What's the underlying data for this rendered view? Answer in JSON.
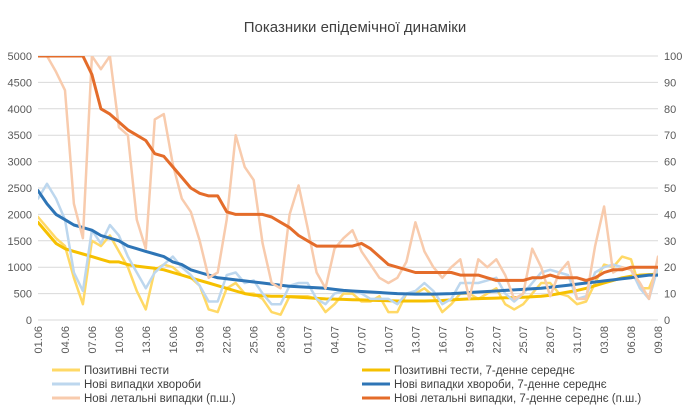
{
  "chart_data": {
    "type": "line",
    "title": "Показники епідемічної динаміки",
    "xlabel": "",
    "ylabel": "",
    "ylim": [
      0,
      5000
    ],
    "y2lim": [
      0,
      100
    ],
    "y_ticks": [
      0,
      500,
      1000,
      1500,
      2000,
      2500,
      3000,
      3500,
      4000,
      4500,
      5000
    ],
    "y2_ticks": [
      0,
      10,
      20,
      30,
      40,
      50,
      60,
      70,
      80,
      90,
      100
    ],
    "grid": true,
    "legend_position": "bottom",
    "x": [
      "01.06",
      "02.06",
      "03.06",
      "04.06",
      "05.06",
      "06.06",
      "07.06",
      "08.06",
      "09.06",
      "10.06",
      "11.06",
      "12.06",
      "13.06",
      "14.06",
      "15.06",
      "16.06",
      "17.06",
      "18.06",
      "19.06",
      "20.06",
      "21.06",
      "22.06",
      "23.06",
      "24.06",
      "25.06",
      "26.06",
      "27.06",
      "28.06",
      "29.06",
      "30.06",
      "01.07",
      "02.07",
      "03.07",
      "04.07",
      "05.07",
      "06.07",
      "07.07",
      "08.07",
      "09.07",
      "10.07",
      "11.07",
      "12.07",
      "13.07",
      "14.07",
      "15.07",
      "16.07",
      "17.07",
      "18.07",
      "19.07",
      "20.07",
      "21.07",
      "22.07",
      "23.07",
      "24.07",
      "25.07",
      "26.07",
      "27.07",
      "28.07",
      "29.07",
      "30.07",
      "31.07",
      "01.08",
      "02.08",
      "03.08",
      "04.08",
      "05.08",
      "06.08",
      "07.08",
      "08.08",
      "09.08"
    ],
    "x_tick_labels": [
      "01.06",
      "04.06",
      "07.06",
      "10.06",
      "13.06",
      "16.06",
      "19.06",
      "22.06",
      "25.06",
      "28.06",
      "01.07",
      "04.07",
      "07.07",
      "10.07",
      "13.07",
      "16.07",
      "19.07",
      "22.07",
      "25.07",
      "28.07",
      "31.07",
      "03.08",
      "06.08",
      "09.08"
    ],
    "series": [
      {
        "name": "Позитивні тести",
        "axis": "left",
        "color": "#ffd966",
        "width": 2.5,
        "values": [
          1950,
          1750,
          1550,
          1400,
          800,
          300,
          1500,
          1400,
          1600,
          1300,
          1000,
          550,
          200,
          950,
          1050,
          1000,
          850,
          800,
          650,
          200,
          150,
          600,
          700,
          500,
          500,
          400,
          150,
          100,
          450,
          450,
          450,
          400,
          150,
          300,
          500,
          500,
          350,
          350,
          450,
          150,
          150,
          500,
          500,
          600,
          450,
          150,
          300,
          500,
          500,
          400,
          500,
          600,
          300,
          200,
          300,
          500,
          700,
          700,
          500,
          450,
          300,
          350,
          700,
          1050,
          1000,
          1200,
          1150,
          600,
          600,
          1000
        ]
      },
      {
        "name": "Позитивні тести, 7-денне середнє",
        "axis": "left",
        "color": "#f6c000",
        "width": 3,
        "values": [
          1850,
          1650,
          1450,
          1350,
          1300,
          1250,
          1200,
          1150,
          1100,
          1100,
          1050,
          1020,
          1000,
          980,
          950,
          900,
          850,
          800,
          750,
          700,
          650,
          600,
          550,
          500,
          470,
          460,
          450,
          450,
          440,
          430,
          420,
          410,
          400,
          395,
          390,
          385,
          380,
          375,
          370,
          365,
          360,
          360,
          360,
          360,
          365,
          370,
          380,
          390,
          400,
          405,
          410,
          415,
          420,
          425,
          430,
          440,
          450,
          470,
          500,
          530,
          560,
          600,
          650,
          700,
          750,
          800,
          830,
          850,
          860,
          870
        ]
      },
      {
        "name": "Нові випадки хвороби",
        "axis": "left",
        "color": "#bdd7ee",
        "width": 2.5,
        "values": [
          2300,
          2580,
          2300,
          1900,
          900,
          550,
          1700,
          1450,
          1800,
          1600,
          1200,
          900,
          600,
          900,
          1050,
          1200,
          1000,
          850,
          650,
          350,
          350,
          850,
          900,
          700,
          750,
          500,
          300,
          300,
          650,
          700,
          700,
          400,
          300,
          500,
          550,
          550,
          500,
          400,
          400,
          400,
          300,
          500,
          550,
          700,
          550,
          300,
          400,
          700,
          700,
          700,
          750,
          800,
          500,
          350,
          500,
          700,
          900,
          950,
          900,
          850,
          400,
          450,
          900,
          1000,
          1050,
          1000,
          950,
          600,
          400,
          1000
        ]
      },
      {
        "name": "Нові випадки хвороби, 7-денне середнє",
        "axis": "left",
        "color": "#2e75b6",
        "width": 3,
        "values": [
          2450,
          2200,
          2000,
          1900,
          1800,
          1750,
          1700,
          1600,
          1550,
          1500,
          1400,
          1350,
          1300,
          1250,
          1200,
          1100,
          1050,
          950,
          900,
          850,
          800,
          780,
          760,
          740,
          720,
          700,
          680,
          660,
          640,
          630,
          620,
          610,
          600,
          580,
          560,
          550,
          540,
          530,
          520,
          510,
          500,
          495,
          490,
          490,
          490,
          495,
          500,
          510,
          520,
          530,
          540,
          550,
          560,
          570,
          580,
          590,
          600,
          620,
          640,
          660,
          680,
          700,
          720,
          740,
          760,
          780,
          800,
          830,
          850,
          850
        ]
      },
      {
        "name": "Нові летальні випадки (п.ш.)",
        "axis": "right",
        "color": "#f8cbad",
        "width": 2.5,
        "values": [
          100,
          100,
          94,
          87,
          44,
          31,
          100,
          95,
          100,
          73,
          70,
          38,
          27,
          76,
          78,
          59,
          46,
          41,
          30,
          16,
          18,
          38,
          70,
          58,
          53,
          29,
          14,
          12,
          40,
          51,
          35,
          18,
          12,
          27,
          31,
          34,
          26,
          21,
          16,
          14,
          16,
          22,
          37,
          26,
          20,
          16,
          20,
          23,
          8,
          23,
          20,
          23,
          17,
          8,
          10,
          27,
          20,
          9,
          18,
          22,
          8,
          8,
          28,
          43,
          18,
          20,
          19,
          14,
          8,
          24
        ]
      },
      {
        "name": "Нові летальні випадки, 7-денне середнє (п.ш.)",
        "axis": "right",
        "color": "#e46c2a",
        "width": 3,
        "values": [
          100,
          100,
          100,
          100,
          100,
          100,
          93,
          80,
          78,
          75,
          72,
          70,
          68,
          63,
          62,
          58,
          54,
          50,
          48,
          47,
          47,
          41,
          40,
          40,
          40,
          40,
          39,
          37,
          35,
          32,
          30,
          28,
          28,
          28,
          28,
          28,
          29,
          27,
          24,
          21,
          20,
          19,
          18,
          18,
          18,
          18,
          18,
          17,
          17,
          17,
          16,
          15,
          15,
          15,
          15,
          16,
          16,
          17,
          16,
          16,
          16,
          15,
          16,
          18,
          19,
          19,
          20,
          20,
          20,
          20
        ]
      }
    ]
  }
}
